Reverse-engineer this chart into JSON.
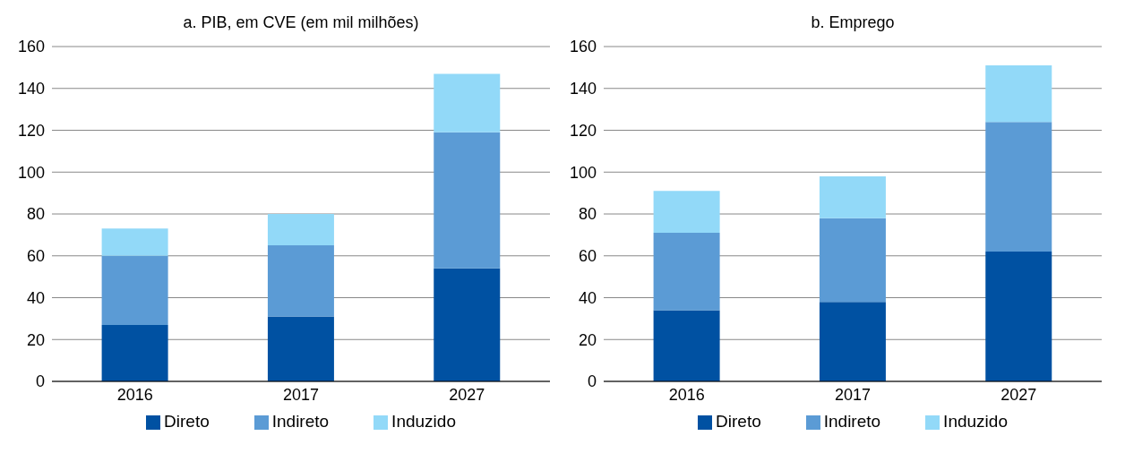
{
  "chart_data": [
    {
      "type": "bar",
      "title": "a. PIB, em CVE (em mil milhões)",
      "categories": [
        "2016",
        "2017",
        "2027"
      ],
      "stacked": true,
      "ylim": [
        0,
        160
      ],
      "yticks": [
        0,
        20,
        40,
        60,
        80,
        100,
        120,
        140,
        160
      ],
      "grid": "y",
      "legend": "bottom",
      "series": [
        {
          "name": "Direto",
          "color": "#0051a2",
          "values": [
            27,
            31,
            54
          ]
        },
        {
          "name": "Indireto",
          "color": "#5b9bd5",
          "values": [
            33,
            34,
            65
          ]
        },
        {
          "name": "Induzido",
          "color": "#92d9f8",
          "values": [
            13,
            15,
            28
          ]
        }
      ]
    },
    {
      "type": "bar",
      "title": "b. Emprego",
      "categories": [
        "2016",
        "2017",
        "2027"
      ],
      "stacked": true,
      "ylim": [
        0,
        160
      ],
      "yticks": [
        0,
        20,
        40,
        60,
        80,
        100,
        120,
        140,
        160
      ],
      "grid": "y",
      "legend": "bottom",
      "series": [
        {
          "name": "Direto",
          "color": "#0051a2",
          "values": [
            34,
            38,
            62
          ]
        },
        {
          "name": "Indireto",
          "color": "#5b9bd5",
          "values": [
            37,
            40,
            62
          ]
        },
        {
          "name": "Induzido",
          "color": "#92d9f8",
          "values": [
            20,
            20,
            27
          ]
        }
      ]
    }
  ]
}
